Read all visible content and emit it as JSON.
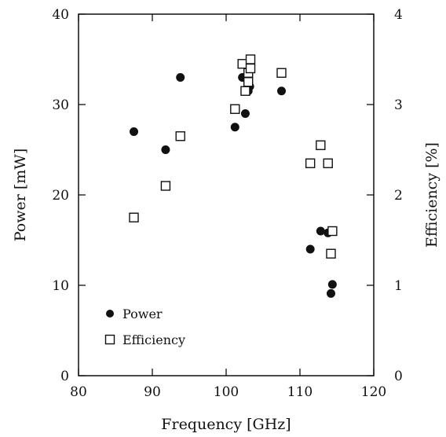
{
  "chart_data": {
    "type": "scatter",
    "title": "",
    "xlabel": "Frequency [GHz]",
    "ylabel": "Power [mW]",
    "y2label": "Efficiency [%]",
    "xlim": [
      80,
      120
    ],
    "ylim": [
      0,
      40
    ],
    "y2lim": [
      0,
      4
    ],
    "xticks": [
      80,
      90,
      100,
      110,
      120
    ],
    "yticks": [
      0,
      10,
      20,
      30,
      40
    ],
    "y2ticks": [
      0,
      1,
      2,
      3,
      4
    ],
    "grid": false,
    "legend_position": "bottom-left",
    "series": [
      {
        "name": "Power",
        "axis": "left",
        "marker": "filled-circle",
        "points": [
          {
            "x": 87.5,
            "y": 27.0
          },
          {
            "x": 91.8,
            "y": 25.0
          },
          {
            "x": 93.8,
            "y": 33.0
          },
          {
            "x": 101.2,
            "y": 27.5
          },
          {
            "x": 102.2,
            "y": 33.0
          },
          {
            "x": 102.6,
            "y": 29.0
          },
          {
            "x": 102.9,
            "y": 33.0
          },
          {
            "x": 103.0,
            "y": 31.5
          },
          {
            "x": 103.2,
            "y": 32.0
          },
          {
            "x": 103.3,
            "y": 35.0
          },
          {
            "x": 107.5,
            "y": 31.5
          },
          {
            "x": 111.4,
            "y": 14.0
          },
          {
            "x": 112.8,
            "y": 16.0
          },
          {
            "x": 113.8,
            "y": 15.8
          },
          {
            "x": 114.2,
            "y": 9.1
          },
          {
            "x": 114.4,
            "y": 10.1
          }
        ]
      },
      {
        "name": "Efficiency",
        "axis": "right",
        "marker": "open-square",
        "points": [
          {
            "x": 87.5,
            "y": 1.75
          },
          {
            "x": 91.8,
            "y": 2.1
          },
          {
            "x": 93.8,
            "y": 2.65
          },
          {
            "x": 101.2,
            "y": 2.95
          },
          {
            "x": 102.2,
            "y": 3.45
          },
          {
            "x": 102.6,
            "y": 3.15
          },
          {
            "x": 103.0,
            "y": 3.25
          },
          {
            "x": 103.0,
            "y": 3.35
          },
          {
            "x": 103.3,
            "y": 3.4
          },
          {
            "x": 103.3,
            "y": 3.5
          },
          {
            "x": 107.5,
            "y": 3.35
          },
          {
            "x": 111.4,
            "y": 2.35
          },
          {
            "x": 112.8,
            "y": 2.55
          },
          {
            "x": 113.8,
            "y": 2.35
          },
          {
            "x": 114.2,
            "y": 1.35
          },
          {
            "x": 114.4,
            "y": 1.6
          }
        ]
      }
    ]
  },
  "colors": {
    "ink": "#111111",
    "background": "#ffffff"
  }
}
